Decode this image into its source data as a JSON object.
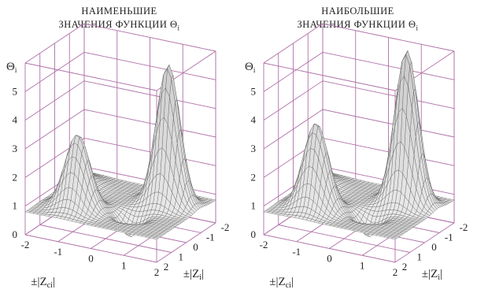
{
  "panels": [
    {
      "title_line1": "НАИМЕНЬШИЕ",
      "title_line2": "ЗНАЧЕНИЯ ФУНКЦИИ Θ",
      "title_sub": "i"
    },
    {
      "title_line1": "НАИБОЛЬШИЕ",
      "title_line2": "ЗНАЧЕНИЯ ФУНКЦИИ Θ",
      "title_sub": "i"
    }
  ],
  "axes": {
    "z_label": "Θ",
    "z_label_sub": "i",
    "x_label": "±|Z",
    "x_label_sub": "ci",
    "y_label": "±|Z",
    "y_label_sub": "i",
    "z_ticks": [
      "0",
      "1",
      "2",
      "3",
      "4",
      "5"
    ],
    "x_ticks": [
      "-2",
      "-1",
      "0",
      "1",
      "2"
    ],
    "y_ticks": [
      "2",
      "1",
      "0",
      "-1",
      "-2"
    ]
  },
  "colors": {
    "grid": "#b070a8",
    "surface": "#e4e4e4",
    "mesh": "#555555"
  },
  "chart_data": [
    {
      "type": "surface",
      "title": "НАИМЕНЬШИЕ ЗНАЧЕНИЯ ФУНКЦИИ Θi",
      "xlabel": "±|Zci|",
      "ylabel": "±|Zi|",
      "zlabel": "Θi",
      "xlim": [
        -2,
        2
      ],
      "ylim": [
        -2,
        2
      ],
      "zlim": [
        0,
        6
      ],
      "grid": true,
      "peak_z": 5.0,
      "secondary_peak_z": 2.5
    },
    {
      "type": "surface",
      "title": "НАИБОЛЬШИЕ ЗНАЧЕНИЯ ФУНКЦИИ Θi",
      "xlabel": "±|Zci|",
      "ylabel": "±|Zi|",
      "zlabel": "Θi",
      "xlim": [
        -2,
        2
      ],
      "ylim": [
        -2,
        2
      ],
      "zlim": [
        0,
        6
      ],
      "grid": true,
      "peak_z": 5.5,
      "secondary_peak_z": 3.0
    }
  ]
}
